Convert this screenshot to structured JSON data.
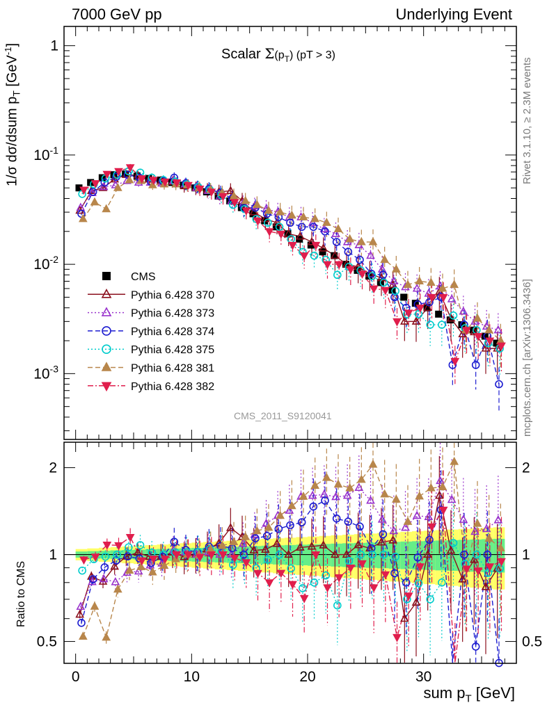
{
  "header": {
    "left": "7000 GeV pp",
    "right": "Underlying Event"
  },
  "side_labels": {
    "rivet": "Rivet 3.1.10, ≥ 2.3M events",
    "mcplots": "mcplots.cern.ch [arXiv:1306.3436]"
  },
  "analysis_tag": "CMS_2011_S9120041",
  "chart_data": [
    {
      "type": "scatter",
      "panel": "main",
      "title_parts": {
        "prefix": "Scalar ",
        "sigma": "Σ",
        "open": "(p",
        "sub": "T",
        "close": ")",
        "cut": " (pT >  3)"
      },
      "title": "Scalar Σ(pT) (pT >  3)",
      "ylabel": "1/σ dσ/dsum pT [GeV-1]",
      "ylabel_parts": {
        "a": "1/σ dσ/dsum p",
        "sub": "T",
        "b": " [GeV",
        "sup": "-1",
        "c": "]"
      },
      "yscale": "log",
      "ylim": [
        0.00025,
        1.5
      ],
      "yticks": [
        {
          "v": 1,
          "label": "1"
        },
        {
          "v": 0.1,
          "label": "10",
          "exp": "-1"
        },
        {
          "v": 0.01,
          "label": "10",
          "exp": "-2"
        },
        {
          "v": 0.001,
          "label": "10",
          "exp": "-3"
        }
      ],
      "x": [
        0.5,
        1.5,
        2.5,
        3.5,
        4.5,
        5.5,
        6.5,
        7.5,
        8.5,
        9.5,
        10.5,
        11.5,
        12.5,
        13.5,
        14.5,
        15.5,
        16.5,
        17.5,
        18.5,
        19.5,
        20.5,
        21.5,
        22.5,
        23.5,
        24.5,
        25.5,
        26.5,
        27.5,
        28.5,
        29.5,
        30.5,
        31.5,
        32.5,
        33.5,
        34.5,
        35.5,
        36.5
      ],
      "series": [
        {
          "name": "CMS",
          "color": "#000000",
          "marker": "square",
          "line": "none",
          "values": [
            0.05,
            0.056,
            0.062,
            0.066,
            0.067,
            0.064,
            0.061,
            0.059,
            0.056,
            0.053,
            0.05,
            0.046,
            0.042,
            0.038,
            0.033,
            0.029,
            0.025,
            0.022,
            0.019,
            0.017,
            0.015,
            0.013,
            0.012,
            0.01,
            0.0088,
            0.0078,
            0.0068,
            0.0058,
            0.005,
            0.0044,
            0.004,
            0.0035,
            0.0031,
            0.0028,
            0.0025,
            0.0022,
            0.0019
          ]
        },
        {
          "name": "Pythia 6.428 370",
          "color": "#8b0f1d",
          "marker": "triangle-up-open",
          "line": "solid",
          "values": [
            0.031,
            0.047,
            0.05,
            0.06,
            0.066,
            0.065,
            0.06,
            0.058,
            0.057,
            0.052,
            0.05,
            0.048,
            0.046,
            0.047,
            0.038,
            0.03,
            0.026,
            0.024,
            0.019,
            0.018,
            0.016,
            0.014,
            0.012,
            0.01,
            0.0095,
            0.0082,
            0.0075,
            0.0065,
            0.003,
            0.003,
            0.004,
            0.0056,
            0.0032,
            0.0023,
            0.0024,
            0.0017,
            0.0017
          ]
        },
        {
          "name": "Pythia 6.428 373",
          "color": "#9932cc",
          "marker": "triangle-up-open",
          "line": "dotted",
          "values": [
            0.033,
            0.045,
            0.051,
            0.053,
            0.058,
            0.056,
            0.056,
            0.055,
            0.058,
            0.054,
            0.05,
            0.047,
            0.042,
            0.038,
            0.036,
            0.034,
            0.032,
            0.03,
            0.027,
            0.027,
            0.024,
            0.021,
            0.019,
            0.016,
            0.015,
            0.012,
            0.009,
            0.007,
            0.0062,
            0.006,
            0.0054,
            0.0063,
            0.0048,
            0.0037,
            0.003,
            0.0027,
            0.0025
          ]
        },
        {
          "name": "Pythia 6.428 374",
          "color": "#1c1cd0",
          "marker": "circle-open",
          "line": "dashed",
          "values": [
            0.029,
            0.046,
            0.056,
            0.063,
            0.066,
            0.062,
            0.057,
            0.058,
            0.062,
            0.055,
            0.051,
            0.049,
            0.045,
            0.04,
            0.033,
            0.033,
            0.029,
            0.027,
            0.024,
            0.022,
            0.022,
            0.02,
            0.016,
            0.013,
            0.011,
            0.0082,
            0.008,
            0.005,
            0.004,
            0.0043,
            0.0045,
            0.005,
            0.0012,
            0.0028,
            0.0012,
            0.0022,
            0.0008
          ]
        },
        {
          "name": "Pythia 6.428 375",
          "color": "#00cccc",
          "marker": "circle-open",
          "line": "dotted",
          "values": [
            0.044,
            0.054,
            0.061,
            0.066,
            0.071,
            0.069,
            0.062,
            0.059,
            0.057,
            0.054,
            0.051,
            0.048,
            0.043,
            0.035,
            0.032,
            0.026,
            0.024,
            0.022,
            0.017,
            0.013,
            0.012,
            0.011,
            0.008,
            0.0095,
            0.0088,
            0.0078,
            0.0068,
            0.0057,
            0.0035,
            0.0035,
            0.0028,
            0.0028,
            0.0034,
            0.0026,
            0.0025,
            0.0019,
            0.0017
          ]
        },
        {
          "name": "Pythia 6.428 381",
          "color": "#b8864b",
          "marker": "triangle-up-filled",
          "line": "dashed",
          "values": [
            0.026,
            0.037,
            0.032,
            0.05,
            0.059,
            0.058,
            0.053,
            0.054,
            0.054,
            0.053,
            0.05,
            0.048,
            0.045,
            0.042,
            0.038,
            0.035,
            0.031,
            0.03,
            0.028,
            0.027,
            0.026,
            0.024,
            0.021,
            0.017,
            0.016,
            0.016,
            0.011,
            0.009,
            0.0065,
            0.007,
            0.0068,
            0.006,
            0.0065,
            0.0025,
            0.0032,
            0.0025,
            0.002
          ]
        },
        {
          "name": "Pythia 6.428 382",
          "color": "#e01e4c",
          "marker": "triangle-down-filled",
          "line": "dashdot",
          "values": [
            0.048,
            0.055,
            0.067,
            0.071,
            0.077,
            0.061,
            0.059,
            0.057,
            0.056,
            0.053,
            0.049,
            0.046,
            0.042,
            0.037,
            0.031,
            0.025,
            0.02,
            0.019,
            0.015,
            0.012,
            0.015,
            0.01,
            0.01,
            0.009,
            0.0082,
            0.006,
            0.0058,
            0.003,
            0.0036,
            0.004,
            0.005,
            0.005,
            0.0013,
            0.0025,
            0.0022,
            0.002,
            0.0018
          ]
        }
      ]
    },
    {
      "type": "scatter",
      "panel": "ratio",
      "ylabel": "Ratio to CMS",
      "yscale": "log",
      "ylim": [
        0.42,
        2.45
      ],
      "yticks": [
        {
          "v": 0.5,
          "label": "0.5"
        },
        {
          "v": 1,
          "label": "1"
        },
        {
          "v": 2,
          "label": "2"
        }
      ],
      "xlabel": "sum pT [GeV]",
      "xlabel_parts": {
        "a": "sum p",
        "sub": "T",
        "b": " [GeV]"
      },
      "xlim": [
        -1,
        38
      ],
      "xticks": [
        0,
        10,
        20,
        30
      ],
      "reference": "CMS",
      "uncertainty_bands": {
        "inner_color": "#66ee88",
        "outer_color": "#ffff66"
      }
    }
  ]
}
